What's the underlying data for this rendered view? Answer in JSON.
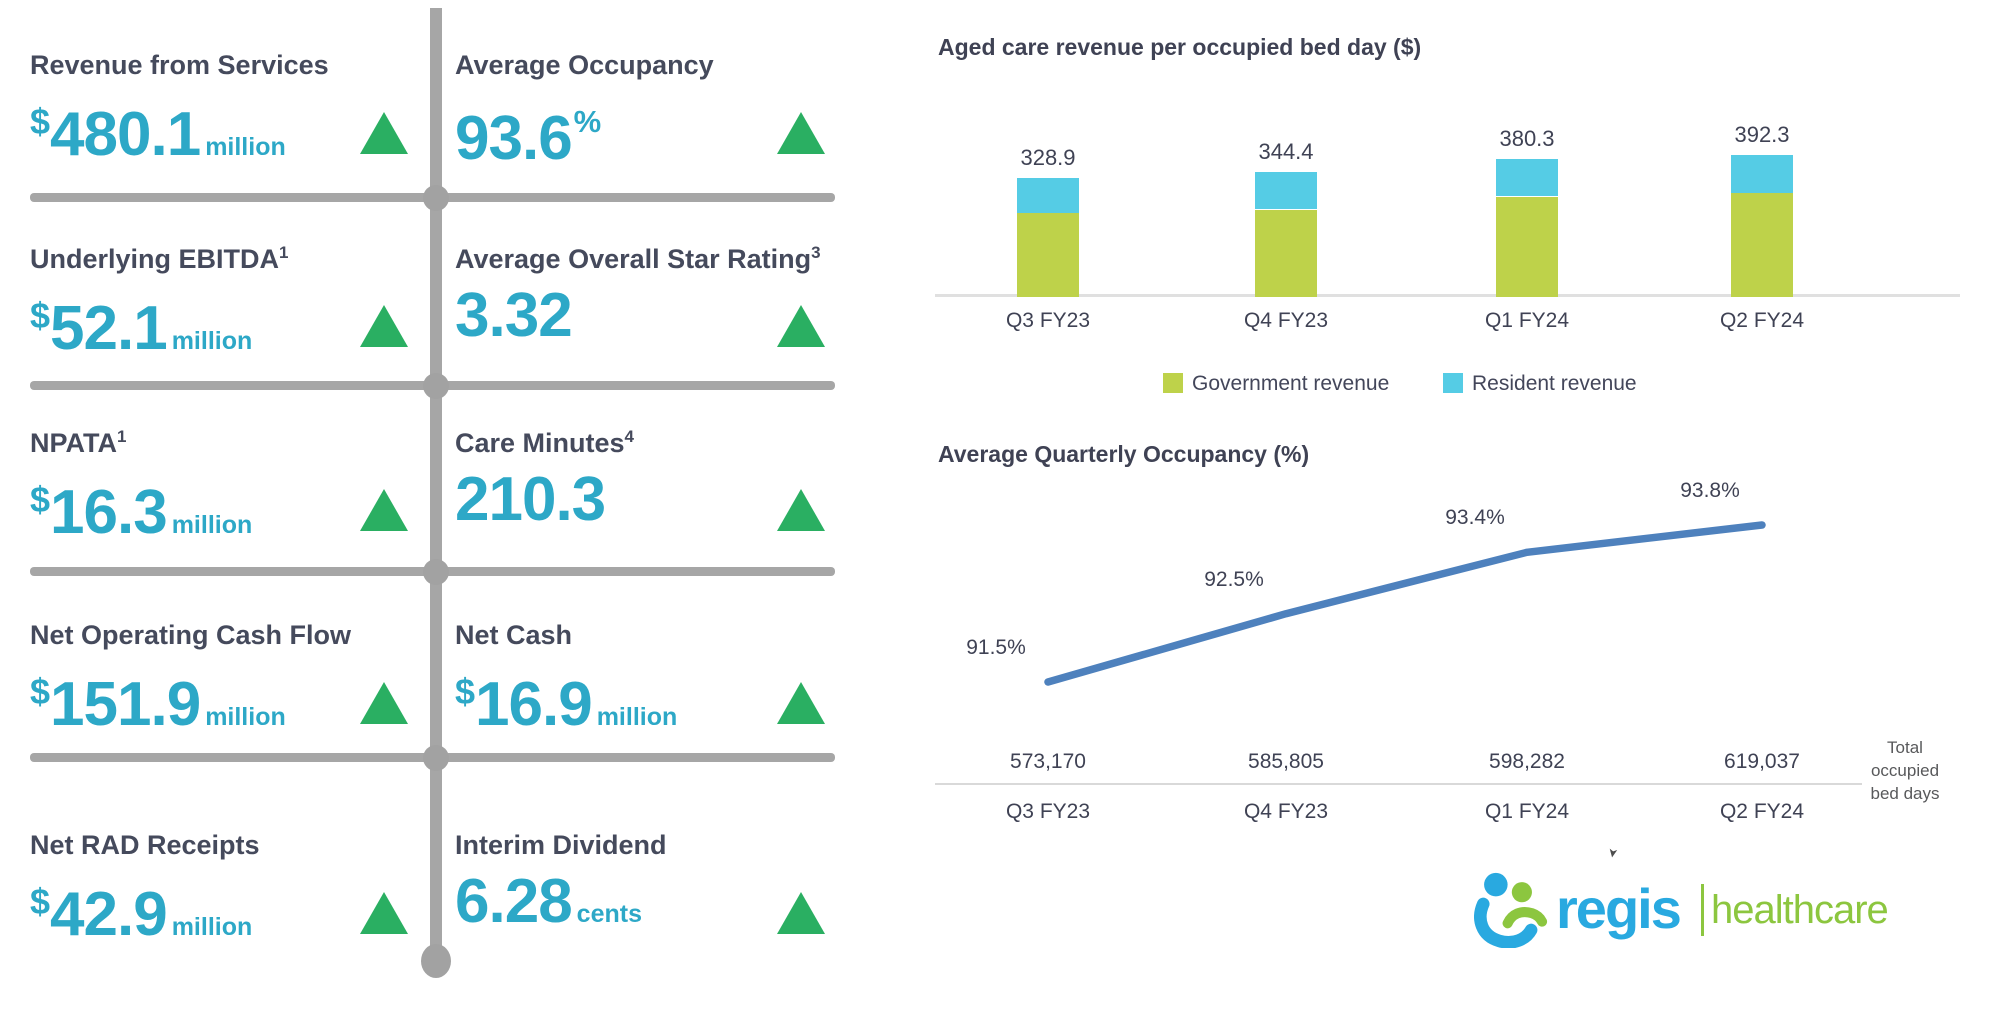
{
  "colors": {
    "kpi_value": "#2da8c7",
    "kpi_label": "#454a5c",
    "trend_up": "#2aaf62",
    "divider_gray": "#a6a6a6",
    "chart_text": "#3f4254",
    "light_rule": "#dcdcdc",
    "logo_blue": "#29a9e0",
    "logo_green": "#8cc63f"
  },
  "kpi_panel": {
    "tiles": [
      {
        "label": "Revenue from Services",
        "sup": "",
        "prefix": "$",
        "value": "480.1",
        "unit": "million",
        "unit_style": "baseline",
        "trend": "up"
      },
      {
        "label": "Average Occupancy",
        "sup": "",
        "prefix": "",
        "value": "93.6",
        "unit": "%",
        "unit_style": "super",
        "trend": "up"
      },
      {
        "label": "Underlying EBITDA",
        "sup": "1",
        "prefix": "$",
        "value": "52.1",
        "unit": "million",
        "unit_style": "baseline",
        "trend": "up"
      },
      {
        "label": "Average Overall Star Rating",
        "sup": "3",
        "prefix": "",
        "value": "3.32",
        "unit": "",
        "unit_style": "none",
        "trend": "up"
      },
      {
        "label": "NPATA",
        "sup": "1",
        "prefix": "$",
        "value": "16.3",
        "unit": "million",
        "unit_style": "baseline",
        "trend": "up"
      },
      {
        "label": "Care Minutes",
        "sup": "4",
        "prefix": "",
        "value": "210.3",
        "unit": "",
        "unit_style": "none",
        "trend": "up"
      },
      {
        "label": "Net Operating Cash Flow",
        "sup": "",
        "prefix": "$",
        "value": "151.9",
        "unit": "million",
        "unit_style": "baseline",
        "trend": "up"
      },
      {
        "label": "Net Cash",
        "sup": "",
        "prefix": "$",
        "value": "16.9",
        "unit": "million",
        "unit_style": "baseline",
        "trend": "up"
      },
      {
        "label": "Net RAD Receipts",
        "sup": "",
        "prefix": "$",
        "value": "42.9",
        "unit": "million",
        "unit_style": "baseline",
        "trend": "up"
      },
      {
        "label": "Interim Dividend",
        "sup": "",
        "prefix": "",
        "value": "6.28",
        "unit": "cents",
        "unit_style": "baseline",
        "trend": "up"
      }
    ]
  },
  "chart_data": [
    {
      "type": "bar",
      "stacked": true,
      "title": "Aged care revenue per occupied bed day ($)",
      "categories": [
        "Q3 FY23",
        "Q4 FY23",
        "Q1 FY24",
        "Q2 FY24"
      ],
      "series": [
        {
          "name": "Government revenue",
          "color": "#bed24a",
          "values": [
            232.0,
            241.0,
            277.0,
            287.0
          ]
        },
        {
          "name": "Resident revenue",
          "color": "#55cce5",
          "values": [
            96.9,
            103.4,
            103.3,
            105.3
          ]
        }
      ],
      "totals": [
        328.9,
        344.4,
        380.3,
        392.3
      ],
      "total_labels": [
        "328.9",
        "344.4",
        "380.3",
        "392.3"
      ],
      "ylim": [
        0,
        420
      ],
      "grid": false,
      "legend_position": "bottom"
    },
    {
      "type": "line",
      "title": "Average Quarterly Occupancy (%)",
      "categories": [
        "Q3 FY23",
        "Q4 FY23",
        "Q1 FY24",
        "Q2 FY24"
      ],
      "values": [
        91.5,
        92.5,
        93.4,
        93.8
      ],
      "point_labels": [
        "91.5%",
        "92.5%",
        "93.4%",
        "93.8%"
      ],
      "line_color": "#4e81bd",
      "ylim": [
        91.0,
        94.3
      ],
      "grid": false,
      "footer": {
        "row_label": "Total\noccupied\nbed days",
        "values": [
          "573,170",
          "585,805",
          "598,282",
          "619,037"
        ]
      }
    }
  ],
  "logo": {
    "brand": "regis",
    "suffix": "healthcare"
  }
}
